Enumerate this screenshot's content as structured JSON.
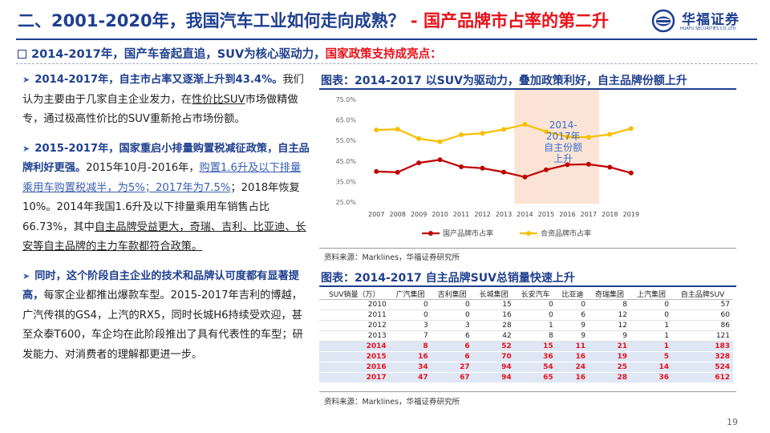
{
  "header": {
    "title_main": "二、2001-2020年，我国汽车工业如何走向成熟？",
    "title_sep": " - ",
    "title_red": "国产品牌市占率的第二升",
    "logo_text": "华福证券",
    "logo_sub": "HUAFU SECURITIES CO.,LTD."
  },
  "subtitle": {
    "main": "2014-2017年，国产车奋起直追，SUV为核心驱动力，",
    "red": "国家政策支持成亮点："
  },
  "left": {
    "p1": {
      "bold": "2014-2017年，自主市占率又逐渐上升到43.4%。",
      "t1": "我们认为主要由于几家自主企业发力，在",
      "u1": "性价比SUV",
      "t2": "市场做精做专，通过极高性价比的SUV重新抢占市场份额。"
    },
    "p2": {
      "bold": "2015-2017年，国家重启小排量购置税减征政策，自主品牌利好更强。",
      "t1": "2015年10月-2016年，",
      "u1": "购置1.6升及以下排量乘用车购置税减半，为5%；2017年为7.5%",
      "t2": "；2018年恢复10%。2014年我国1.6升及以下排量乘用车销售占比66.73%，其中",
      "u2": "自主品牌受益更大，奇瑞、吉利、比亚迪、长安等自主品牌的主力车款都符合政策。"
    },
    "p3": {
      "bold": "同时，这个阶段自主企业的技术和品牌认可度都有显著提高，",
      "t1": "每家企业都推出爆款车型。2015-2017年吉利的博越，广汽传祺的GS4，上汽的RX5，同时长城H6持续受欢迎，甚至众泰T600，车企均在此阶段推出了具有代表性的车型；研发能力、对消费者的理解都更进一步。"
    }
  },
  "figure1": {
    "title": "图表：2014-2017 以SUV为驱动力，叠加政策利好，自主品牌份额上升",
    "source": "资料来源：Marklines，华福证券研究所"
  },
  "chart_data": {
    "type": "line",
    "x": [
      "2007",
      "2008",
      "2009",
      "2010",
      "2011",
      "2012",
      "2013",
      "2014",
      "2015",
      "2016",
      "2017",
      "2018",
      "2019"
    ],
    "series": [
      {
        "name": "国产品牌市占率",
        "values": [
          39.9,
          39.5,
          44.1,
          45.6,
          42.2,
          41.5,
          39.6,
          37.2,
          40.7,
          43.2,
          43.4,
          42.0,
          39.2
        ],
        "color": "#c00000"
      },
      {
        "name": "合资品牌市占率",
        "values": [
          60.1,
          60.5,
          55.9,
          54.4,
          57.8,
          58.5,
          60.4,
          62.8,
          59.3,
          56.8,
          56.6,
          58.0,
          60.8
        ],
        "color": "#f6c000"
      }
    ],
    "y_ticks": [
      "25.0%",
      "35.0%",
      "45.0%",
      "55.0%",
      "65.0%",
      "75.0%"
    ],
    "ylim": [
      25,
      75
    ],
    "highlight": {
      "from": "2014",
      "to": "2017",
      "color": "#fbe4d5"
    },
    "annotation": "2014-2017年自主份额上升",
    "legend": "bottom"
  },
  "figure2": {
    "title": "图表：2014-2017 自主品牌SUV总销量快速上升",
    "source": "资料来源：Marklines，华福证券研究所"
  },
  "suv_table": {
    "headers": [
      "SUV销量（万）",
      "广汽集团",
      "吉利集团",
      "长城集团",
      "长安汽车",
      "比亚迪",
      "奇瑞集团",
      "上汽集团",
      "自主品牌SUV"
    ],
    "rows": [
      [
        "2010",
        "0",
        "0",
        "15",
        "0",
        "0",
        "8",
        "0",
        "57"
      ],
      [
        "2011",
        "0",
        "0",
        "16",
        "0",
        "6",
        "12",
        "0",
        "60"
      ],
      [
        "2012",
        "3",
        "3",
        "28",
        "1",
        "9",
        "12",
        "1",
        "86"
      ],
      [
        "2013",
        "7",
        "6",
        "42",
        "8",
        "9",
        "9",
        "1",
        "121"
      ],
      [
        "2014",
        "8",
        "6",
        "52",
        "15",
        "11",
        "21",
        "1",
        "183"
      ],
      [
        "2015",
        "16",
        "6",
        "70",
        "36",
        "16",
        "19",
        "5",
        "328"
      ],
      [
        "2016",
        "34",
        "27",
        "94",
        "54",
        "24",
        "25",
        "14",
        "524"
      ],
      [
        "2017",
        "47",
        "67",
        "94",
        "65",
        "16",
        "28",
        "36",
        "612"
      ]
    ],
    "highlight_from": 4
  },
  "page_number": "19",
  "colors": {
    "navy": "#1f3f8f",
    "red": "#e8101a"
  }
}
